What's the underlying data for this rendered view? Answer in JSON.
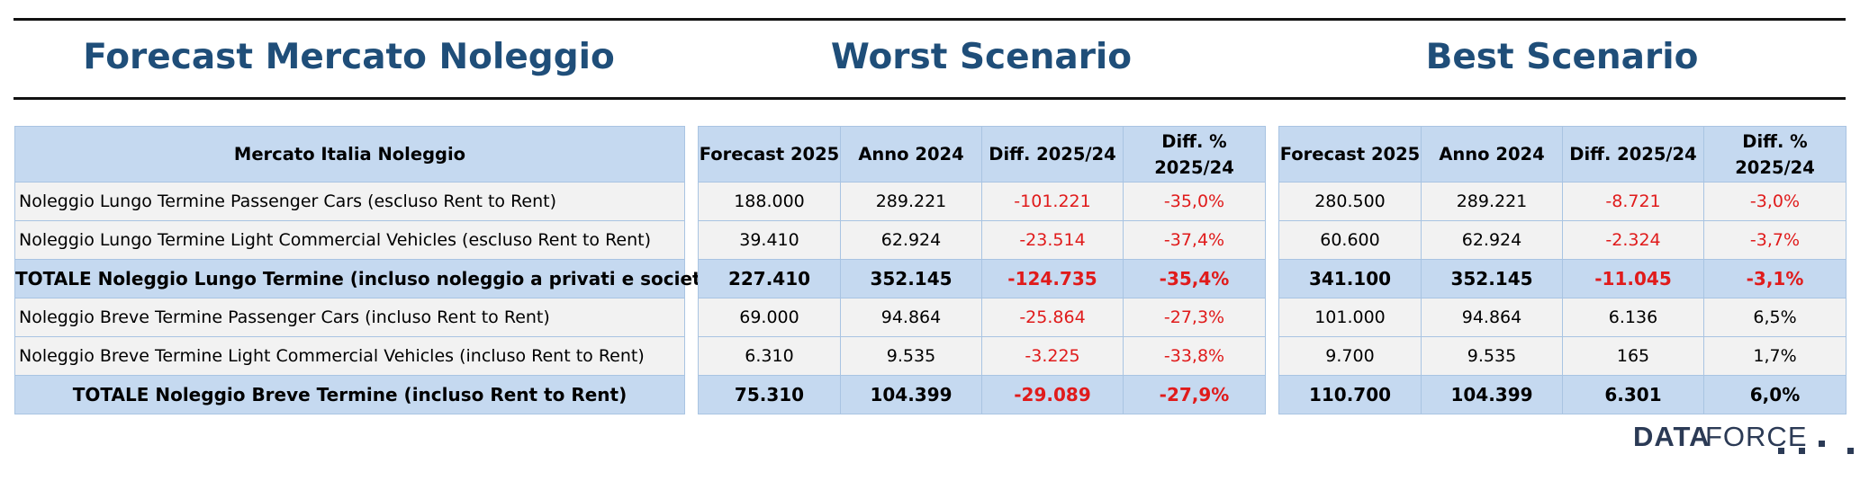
{
  "headings": {
    "forecast": "Forecast Mercato Noleggio",
    "worst": "Worst Scenario",
    "best": "Best Scenario"
  },
  "labels_table": {
    "header": "Mercato Italia Noleggio",
    "rows": [
      "Noleggio Lungo Termine Passenger Cars (escluso Rent to Rent)",
      "Noleggio Lungo Termine Light Commercial Vehicles (escluso Rent to Rent)",
      "TOTALE Noleggio Lungo Termine (incluso noleggio a privati e società)",
      "Noleggio Breve Termine Passenger Cars (incluso Rent to Rent)",
      "Noleggio Breve Termine Light Commercial Vehicles (incluso Rent to Rent)",
      "TOTALE Noleggio Breve Termine (incluso Rent to Rent)"
    ]
  },
  "columns": {
    "forecast": "Forecast 2025",
    "anno": "Anno 2024",
    "diff": "Diff. 2025/24",
    "diff_pct_line1": "Diff. %",
    "diff_pct_line2": "2025/24"
  },
  "worst": {
    "rows": [
      [
        "188.000",
        "289.221",
        "-101.221",
        "-35,0%"
      ],
      [
        "39.410",
        "62.924",
        "-23.514",
        "-37,4%"
      ],
      [
        "227.410",
        "352.145",
        "-124.735",
        "-35,4%"
      ],
      [
        "69.000",
        "94.864",
        "-25.864",
        "-27,3%"
      ],
      [
        "6.310",
        "9.535",
        "-3.225",
        "-33,8%"
      ],
      [
        "75.310",
        "104.399",
        "-29.089",
        "-27,9%"
      ]
    ]
  },
  "best": {
    "rows": [
      [
        "280.500",
        "289.221",
        "-8.721",
        "-3,0%"
      ],
      [
        "60.600",
        "62.924",
        "-2.324",
        "-3,7%"
      ],
      [
        "341.100",
        "352.145",
        "-11.045",
        "-3,1%"
      ],
      [
        "101.000",
        "94.864",
        "6.136",
        "6,5%"
      ],
      [
        "9.700",
        "9.535",
        "165",
        "1,7%"
      ],
      [
        "110.700",
        "104.399",
        "6.301",
        "6,0%"
      ]
    ]
  },
  "colors": {
    "heading": "#1f4e79",
    "header_fill": "#c5d9f0",
    "row_fill": "#f2f2f2",
    "negative": "#e01b1b"
  },
  "logo": {
    "text_bold": "DATA",
    "text_light": "FORCE"
  }
}
